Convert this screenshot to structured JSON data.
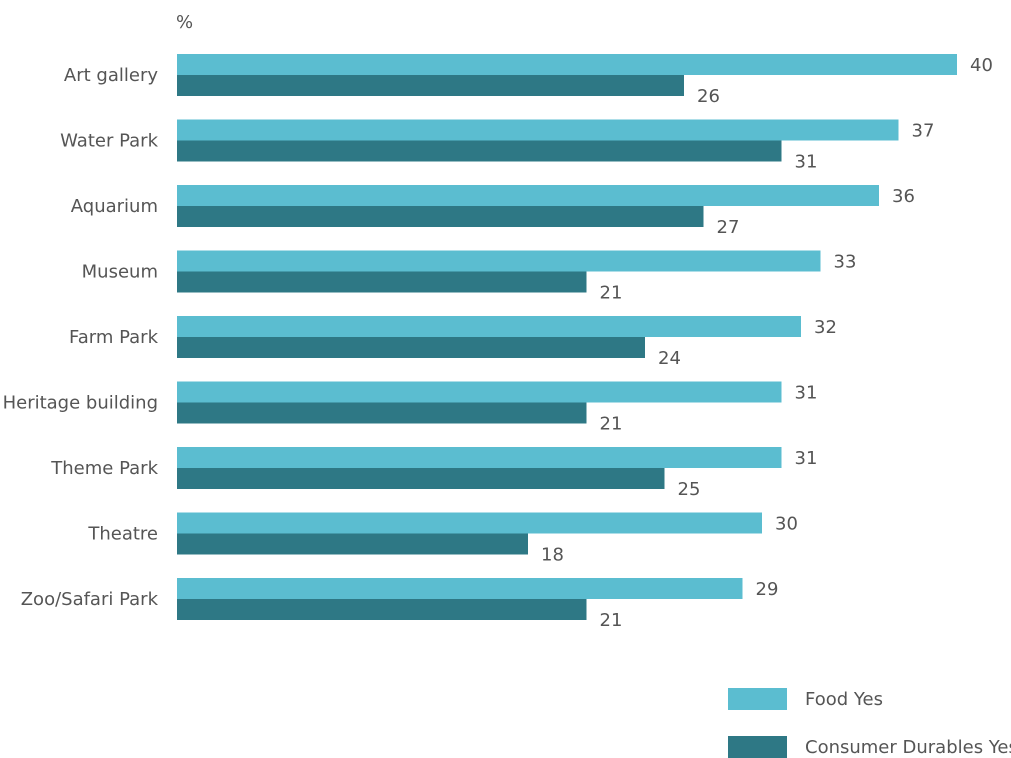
{
  "chart_data": {
    "type": "bar",
    "orientation": "horizontal",
    "y_unit_label": "%",
    "categories": [
      "Art gallery",
      "Water Park",
      "Aquarium",
      "Museum",
      "Farm Park",
      "Heritage building",
      "Theme Park",
      "Theatre",
      "Zoo/Safari Park"
    ],
    "series": [
      {
        "name": "Food Yes",
        "color": "#5bbdd0",
        "values": [
          40,
          37,
          36,
          33,
          32,
          31,
          31,
          30,
          29
        ]
      },
      {
        "name": "Consumer Durables Yes",
        "color": "#2e7885",
        "values": [
          26,
          31,
          27,
          21,
          24,
          21,
          25,
          18,
          21
        ]
      }
    ],
    "xlim": [
      0,
      40
    ],
    "grid": false,
    "data_labels": true,
    "legend_position": "bottom-right"
  }
}
